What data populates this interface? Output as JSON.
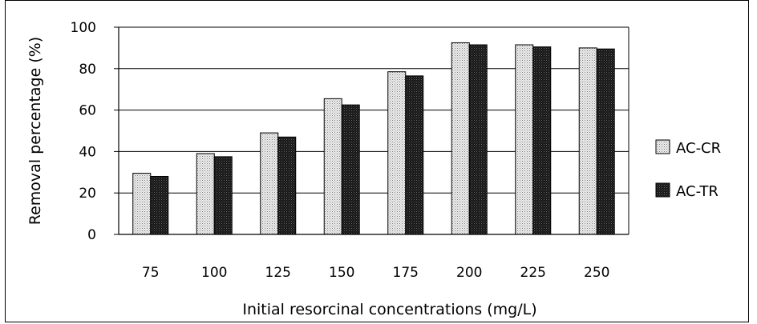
{
  "chart_data": {
    "type": "bar",
    "title": "",
    "xlabel": "Initial resorcinal concentrations (mg/L)",
    "ylabel": "Removal percentage (%)",
    "ylim": [
      0,
      100
    ],
    "yticks": [
      "0",
      "20",
      "40",
      "60",
      "80",
      "100"
    ],
    "categories": [
      "75",
      "100",
      "125",
      "150",
      "175",
      "200",
      "225",
      "250"
    ],
    "series": [
      {
        "name": "AC-CR",
        "values": [
          29.5,
          39,
          49,
          65.5,
          78.5,
          92.5,
          91.5,
          90
        ]
      },
      {
        "name": "AC-TR",
        "values": [
          28,
          37.5,
          47,
          62.5,
          76.5,
          91.5,
          90.5,
          89.5
        ]
      }
    ],
    "grid": true,
    "legend_position": "right"
  }
}
